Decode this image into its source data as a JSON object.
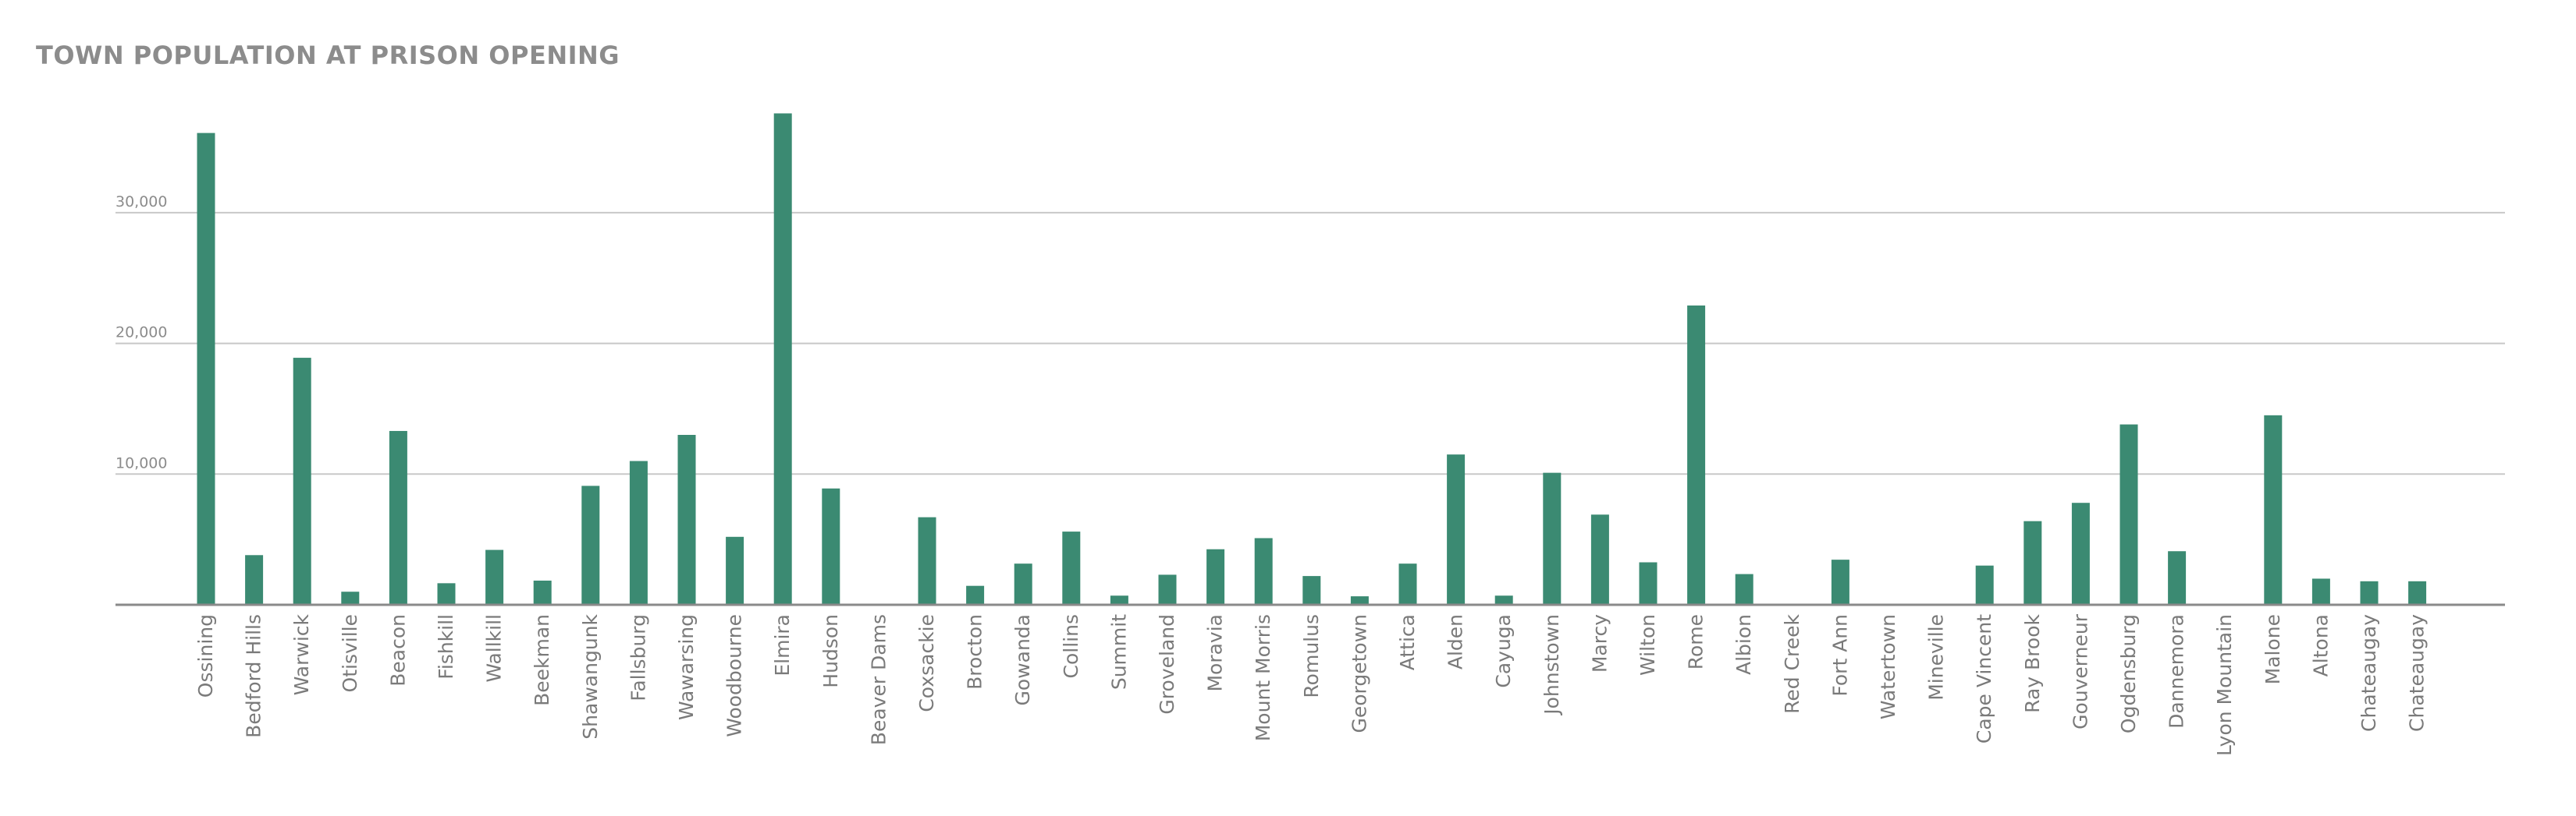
{
  "chart_data": {
    "type": "bar",
    "title": "TOWN POPULATION AT PRISON OPENING",
    "xlabel": "",
    "ylabel": "",
    "ylim": [
      0,
      39000
    ],
    "yticks": [
      10000,
      20000,
      30000
    ],
    "ytick_labels": [
      "10,000",
      "20,000",
      "30,000"
    ],
    "grid": true,
    "bar_color": "#3b8a72",
    "categories": [
      "Ossining",
      "Bedford Hills",
      "Warwick",
      "Otisville",
      "Beacon",
      "Fishkill",
      "Wallkill",
      "Beekman",
      "Shawangunk",
      "Fallsburg",
      "Wawarsing",
      "Woodbourne",
      "Elmira",
      "Hudson",
      "Beaver Dams",
      "Coxsackie",
      "Brocton",
      "Gowanda",
      "Collins",
      "Summit",
      "Groveland",
      "Moravia",
      "Mount Morris",
      "Romulus",
      "Georgetown",
      "Attica",
      "Alden",
      "Cayuga",
      "Johnstown",
      "Marcy",
      "Wilton",
      "Rome",
      "Albion",
      "Red Creek",
      "Fort Ann",
      "Watertown",
      "Mineville",
      "Cape Vincent",
      "Ray Brook",
      "Gouverneur",
      "Ogdensburg",
      "Dannemora",
      "Lyon Mountain",
      "Malone",
      "Altona",
      "Chateaugay",
      "Chateaugay"
    ],
    "values": [
      36100,
      3800,
      18900,
      1000,
      13300,
      1650,
      4200,
      1850,
      9100,
      11000,
      13000,
      5200,
      37600,
      8900,
      0,
      6700,
      1450,
      3150,
      5600,
      700,
      2300,
      4250,
      5100,
      2200,
      650,
      3150,
      11500,
      700,
      10100,
      6900,
      3250,
      22900,
      2350,
      0,
      3450,
      0,
      0,
      3000,
      6400,
      7800,
      13800,
      4100,
      0,
      14500,
      2000,
      1800,
      1800
    ]
  }
}
